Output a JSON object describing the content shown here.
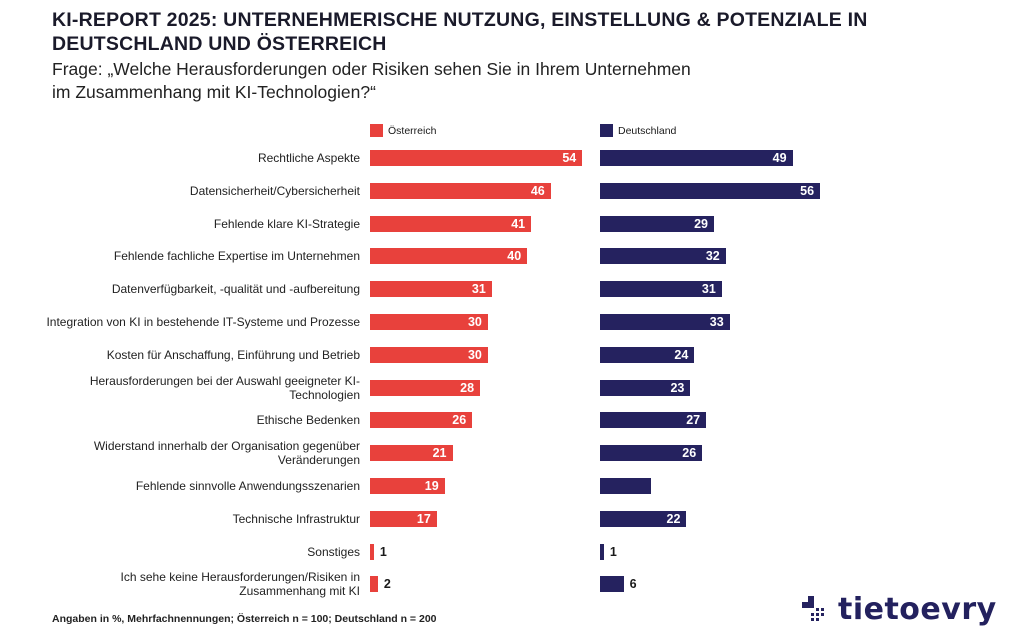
{
  "title": "KI-REPORT 2025: UNTERNEHMERISCHE NUTZUNG, EINSTELLUNG & POTENZIALE IN DEUTSCHLAND UND ÖSTERREICH",
  "subtitle_line1": "Frage: „Welche Herausforderungen oder Risiken sehen Sie in Ihrem Unternehmen",
  "subtitle_line2": "im Zusammenhang mit KI-Technologien?“",
  "footnote": "Angaben in %, Mehrfachnennungen; Österreich n = 100; Deutschland n = 200",
  "logo_text": "tietoevry",
  "colors": {
    "oesterreich": "#e8413c",
    "deutschland": "#25225f"
  },
  "chart_data": {
    "type": "bar",
    "orientation": "horizontal",
    "unit": "%",
    "categories": [
      "Rechtliche Aspekte",
      "Datensicherheit/Cybersicherheit",
      "Fehlende klare KI-Strategie",
      "Fehlende fachliche Expertise im Unternehmen",
      "Datenverfügbarkeit, -qualität und -aufbereitung",
      "Integration von KI in bestehende IT-Systeme und Prozesse",
      "Kosten für Anschaffung, Einführung und Betrieb",
      "Herausforderungen bei der Auswahl geeigneter KI-Technologien",
      "Ethische Bedenken",
      "Widerstand innerhalb der Organisation gegenüber Veränderungen",
      "Fehlende sinnvolle Anwendungsszenarien",
      "Technische Infrastruktur",
      "Sonstiges",
      "Ich sehe keine Herausforderungen/Risiken in Zusammenhang mit KI"
    ],
    "series": [
      {
        "name": "Österreich",
        "values": [
          54,
          46,
          41,
          40,
          31,
          30,
          30,
          28,
          26,
          21,
          19,
          17,
          1,
          2
        ],
        "labels_shown": [
          true,
          true,
          true,
          true,
          true,
          true,
          true,
          true,
          true,
          true,
          true,
          true,
          true,
          true
        ]
      },
      {
        "name": "Deutschland",
        "values": [
          49,
          56,
          29,
          32,
          31,
          33,
          24,
          23,
          27,
          26,
          13,
          22,
          1,
          6
        ],
        "labels_shown": [
          true,
          true,
          true,
          true,
          true,
          true,
          true,
          true,
          true,
          true,
          false,
          true,
          true,
          true
        ]
      }
    ],
    "xlim": [
      0,
      60
    ],
    "grid": false,
    "legend": "top"
  }
}
